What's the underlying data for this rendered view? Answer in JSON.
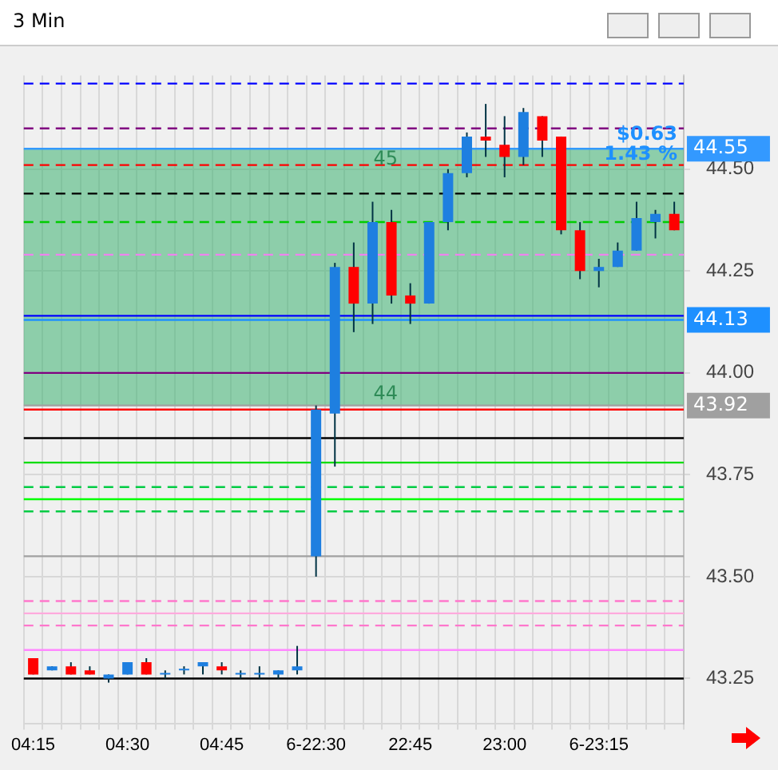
{
  "chart_data": {
    "type": "candlestick",
    "title": "3 Min",
    "categories": [
      "04:15",
      null,
      null,
      null,
      null,
      "04:30",
      null,
      null,
      null,
      null,
      "04:45",
      null,
      null,
      null,
      null,
      "6-22:30",
      null,
      null,
      null,
      null,
      "22:45",
      null,
      null,
      null,
      null,
      "23:00",
      null,
      null,
      null,
      null,
      "6-23:15",
      null,
      null,
      null,
      null
    ],
    "ohlc": [
      [
        43.3,
        43.3,
        43.26,
        43.26
      ],
      [
        43.27,
        43.28,
        43.27,
        43.28
      ],
      [
        43.28,
        43.29,
        43.26,
        43.26
      ],
      [
        43.27,
        43.28,
        43.26,
        43.26
      ],
      [
        43.25,
        43.26,
        43.24,
        43.26
      ],
      [
        43.26,
        43.29,
        43.26,
        43.29
      ],
      [
        43.29,
        43.3,
        43.26,
        43.26
      ],
      [
        43.26,
        43.27,
        43.25,
        43.26
      ],
      [
        43.27,
        43.28,
        43.26,
        43.27
      ],
      [
        43.28,
        43.29,
        43.26,
        43.29
      ],
      [
        43.28,
        43.29,
        43.26,
        43.27
      ],
      [
        43.26,
        43.27,
        43.25,
        43.26
      ],
      [
        43.26,
        43.28,
        43.25,
        43.26
      ],
      [
        43.26,
        43.27,
        43.25,
        43.27
      ],
      [
        43.27,
        43.33,
        43.26,
        43.28
      ],
      [
        43.55,
        43.92,
        43.5,
        43.91
      ],
      [
        43.9,
        44.27,
        43.77,
        44.26
      ],
      [
        44.26,
        44.32,
        44.1,
        44.17
      ],
      [
        44.17,
        44.42,
        44.12,
        44.37
      ],
      [
        44.37,
        44.4,
        44.17,
        44.19
      ],
      [
        44.19,
        44.22,
        44.12,
        44.17
      ],
      [
        44.17,
        44.37,
        44.17,
        44.37
      ],
      [
        44.37,
        44.5,
        44.35,
        44.49
      ],
      [
        44.49,
        44.59,
        44.48,
        44.58
      ],
      [
        44.58,
        44.66,
        44.53,
        44.57
      ],
      [
        44.56,
        44.63,
        44.48,
        44.53
      ],
      [
        44.53,
        44.65,
        44.51,
        44.64
      ],
      [
        44.63,
        44.63,
        44.53,
        44.57
      ],
      [
        44.58,
        44.58,
        44.34,
        44.35
      ],
      [
        44.35,
        44.37,
        44.23,
        44.25
      ],
      [
        44.25,
        44.28,
        44.21,
        44.26
      ],
      [
        44.26,
        44.32,
        44.26,
        44.3
      ],
      [
        44.3,
        44.42,
        44.3,
        44.38
      ],
      [
        44.37,
        44.4,
        44.33,
        44.39
      ],
      [
        44.39,
        44.42,
        44.35,
        44.35
      ]
    ],
    "colors": [
      "#ff0000",
      "#1e7fe0",
      "#ff0000",
      "#ff0000",
      "#1e7fe0",
      "#1e7fe0",
      "#ff0000",
      "#1e7fe0",
      "#1e7fe0",
      "#1e7fe0",
      "#ff0000",
      "#1e7fe0",
      "#1e7fe0",
      "#1e7fe0",
      "#1e7fe0",
      "#1e7fe0",
      "#1e7fe0",
      "#ff0000",
      "#1e7fe0",
      "#ff0000",
      "#ff0000",
      "#1e7fe0",
      "#1e7fe0",
      "#1e7fe0",
      "#ff0000",
      "#ff0000",
      "#1e7fe0",
      "#ff0000",
      "#ff0000",
      "#ff0000",
      "#1e7fe0",
      "#1e7fe0",
      "#1e7fe0",
      "#1e7fe0",
      "#ff0000"
    ],
    "ylim": [
      43.14,
      44.73
    ],
    "yticks": [
      43.25,
      {
        "value": 43.5,
        "label": "43.50"
      },
      43.75,
      {
        "value": 44.0,
        "label": "44.00"
      },
      44.25,
      {
        "value": 44.5,
        "label": "44.50"
      }
    ],
    "grid": true,
    "legend": false,
    "ref_lines": [
      {
        "axis": "y",
        "value": 44.71,
        "color": "#0000ff",
        "line_style": "dashed"
      },
      {
        "axis": "y",
        "value": 44.6,
        "color": "#800080",
        "line_style": "dashed"
      },
      {
        "axis": "y",
        "value": 44.55,
        "label": "44.55",
        "color": "#3399ff",
        "line_style": "solid"
      },
      {
        "axis": "y",
        "value": 44.51,
        "color": "#ff0000",
        "line_style": "dashed"
      },
      {
        "axis": "y",
        "value": 44.44,
        "color": "#000000",
        "line_style": "dashed"
      },
      {
        "axis": "y",
        "value": 44.37,
        "color": "#00cc00",
        "line_style": "dashed"
      },
      {
        "axis": "y",
        "value": 44.29,
        "color": "#ee82ee",
        "line_style": "dashed"
      },
      {
        "axis": "y",
        "value": 44.14,
        "color": "#0000ff",
        "line_style": "solid"
      },
      {
        "axis": "y",
        "value": 44.13,
        "label": "44.13",
        "color": "#1e90ff",
        "line_style": "solid"
      },
      {
        "axis": "y",
        "value": 44.0,
        "color": "#800080",
        "line_style": "solid"
      },
      {
        "axis": "y",
        "value": 43.92,
        "label": "43.92",
        "color": "#a0a0a0",
        "line_style": "solid"
      },
      {
        "axis": "y",
        "value": 43.91,
        "color": "#ff0000",
        "line_style": "solid"
      },
      {
        "axis": "y",
        "value": 43.84,
        "color": "#000000",
        "line_style": "solid"
      },
      {
        "axis": "y",
        "value": 43.78,
        "color": "#00dd00",
        "line_style": "solid"
      },
      {
        "axis": "y",
        "value": 43.72,
        "color": "#00cc44",
        "line_style": "dashed"
      },
      {
        "axis": "y",
        "value": 43.69,
        "color": "#00ff00",
        "line_style": "solid"
      },
      {
        "axis": "y",
        "value": 43.66,
        "color": "#00cc44",
        "line_style": "dashed"
      },
      {
        "axis": "y",
        "value": 43.55,
        "color": "#a0a0a0",
        "line_style": "solid"
      },
      {
        "axis": "y",
        "value": 43.44,
        "color": "#ff77cc",
        "line_style": "dashed"
      },
      {
        "axis": "y",
        "value": 43.41,
        "color": "#ffaadd",
        "line_style": "solid"
      },
      {
        "axis": "y",
        "value": 43.38,
        "color": "#ff77cc",
        "line_style": "dashed"
      },
      {
        "axis": "y",
        "value": 43.32,
        "color": "#ff88ff",
        "line_style": "solid"
      },
      {
        "axis": "y",
        "value": 43.25,
        "color": "#000000",
        "line_style": "solid"
      }
    ],
    "bands": [
      {
        "axis": "y",
        "from": 43.92,
        "to": 44.55,
        "color": "#3cb371"
      }
    ],
    "annotations": [
      {
        "text": "45",
        "y": 44.55
      },
      {
        "text": "44",
        "y": 43.92
      },
      {
        "text": "$0.63",
        "y": 44.6
      },
      {
        "text": "1.43 %",
        "y": 44.55
      }
    ]
  }
}
